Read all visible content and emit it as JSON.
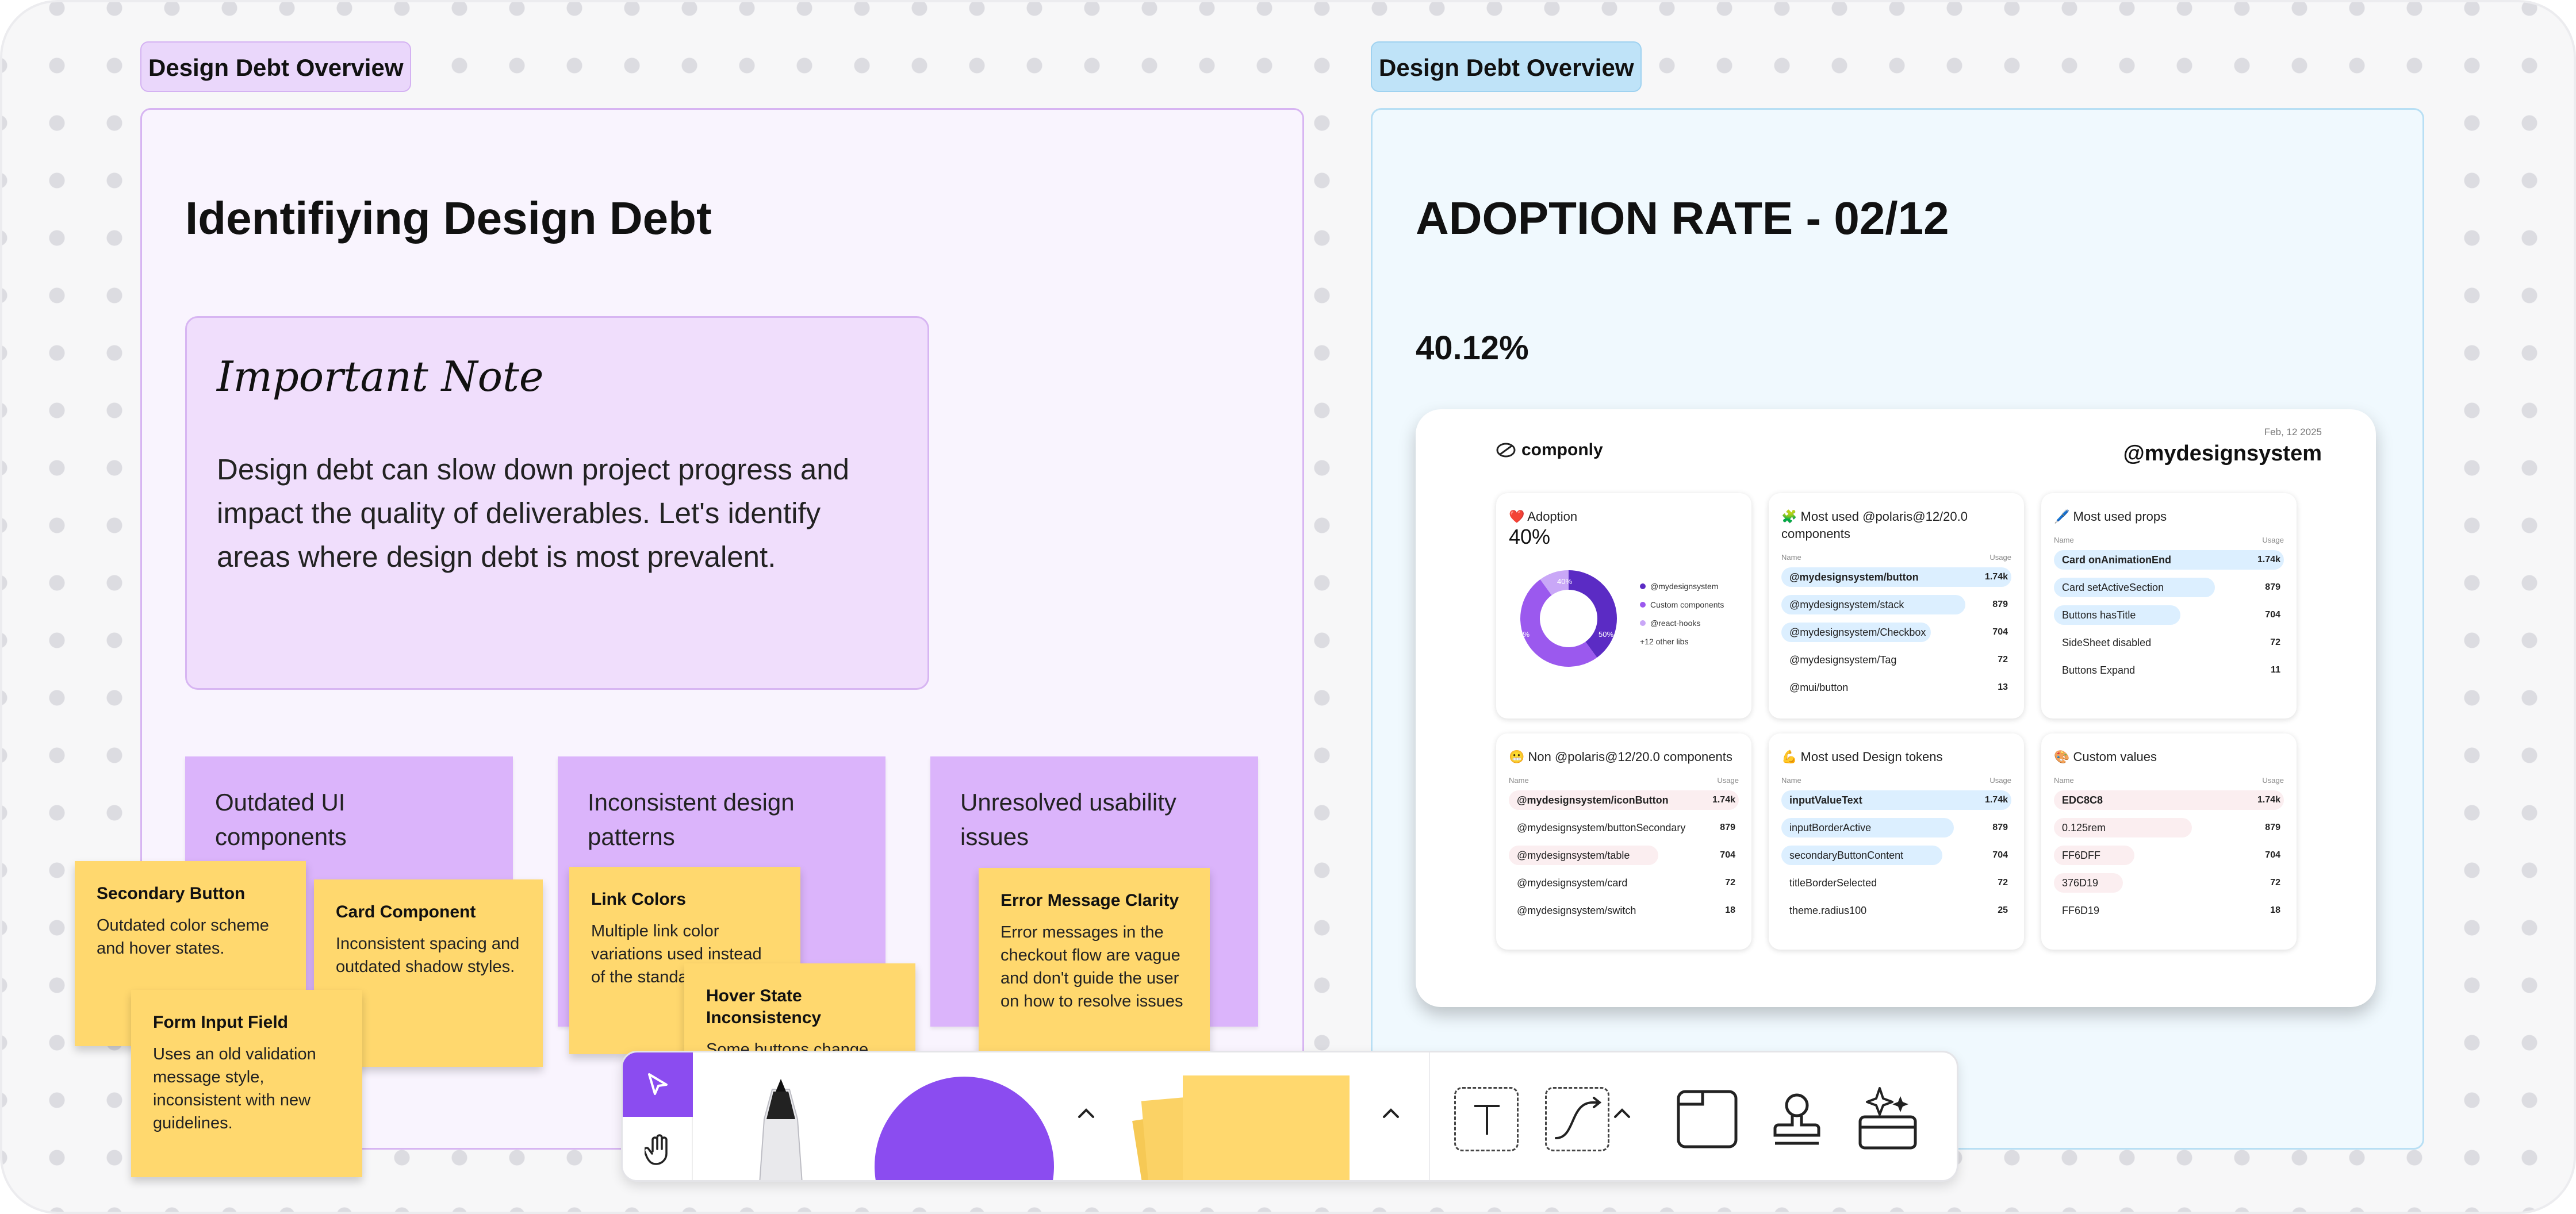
{
  "frames": {
    "left_tag": "Design Debt Overview",
    "right_tag": "Design Debt Overview"
  },
  "left": {
    "title": "Identifiying Design Debt",
    "note": {
      "heading": "Important Note",
      "body": "Design debt can slow down project progress and impact the quality of deliverables. Let's identify areas where design debt is most prevalent."
    },
    "categories": [
      {
        "label": "Outdated UI components"
      },
      {
        "label": "Inconsistent design patterns"
      },
      {
        "label": "Unresolved usability issues"
      }
    ],
    "stickies": [
      {
        "title": "Secondary Button",
        "body": "Outdated color scheme and hover states."
      },
      {
        "title": "Card Component",
        "body": "Inconsistent spacing and outdated shadow styles."
      },
      {
        "title": "Form Input Field",
        "body": "Uses an old validation message style, inconsistent with new guidelines."
      },
      {
        "title": "Link Colors",
        "body": "Multiple link color variations used instead of the standard one."
      },
      {
        "title": "Hover State Inconsistency",
        "body": "Some buttons change color on hover, others only"
      },
      {
        "title": "Error Message Clarity",
        "body": "Error messages in the checkout flow are vague and don't guide the user on how to resolve issues"
      }
    ]
  },
  "right": {
    "title": "ADOPTION RATE - 02/12",
    "rate": "40.12%",
    "dashboard": {
      "brand": "componly",
      "date": "Feb, 12 2025",
      "system": "@mydesignsystem",
      "adoption": {
        "title": "❤️ Adoption",
        "value": "40%",
        "donut_labels": [
          "40%",
          "10%",
          "50%"
        ],
        "slices": [
          {
            "value": 40,
            "color": "#5b2bc4"
          },
          {
            "value": 50,
            "color": "#9b59ee"
          },
          {
            "value": 10,
            "color": "#c9a7f7"
          }
        ],
        "legend": [
          "@mydesignsystem",
          "Custom components",
          "@react-hooks",
          "+12 other libs"
        ]
      },
      "most_used_components": {
        "title": "🧩 Most used @polaris@12/20.0 components",
        "col_name": "Name",
        "col_usage": "Usage",
        "rows": [
          {
            "name": "@mydesignsystem/button",
            "usage": "1.74k",
            "fill": 1.0
          },
          {
            "name": "@mydesignsystem/stack",
            "usage": "879",
            "fill": 0.8
          },
          {
            "name": "@mydesignsystem/Checkbox",
            "usage": "704",
            "fill": 0.65
          },
          {
            "name": "@mydesignsystem/Tag",
            "usage": "72",
            "fill": 0.0
          },
          {
            "name": "@mui/button",
            "usage": "13",
            "fill": 0.0
          }
        ]
      },
      "most_used_props": {
        "title": "🖊️ Most used props",
        "col_name": "Name",
        "col_usage": "Usage",
        "rows": [
          {
            "name": "Card  onAnimationEnd",
            "usage": "1.74k",
            "fill": 1.0
          },
          {
            "name": "Card  setActiveSection",
            "usage": "879",
            "fill": 0.7
          },
          {
            "name": "Buttons  hasTitle",
            "usage": "704",
            "fill": 0.55
          },
          {
            "name": "SideSheet  disabled",
            "usage": "72",
            "fill": 0.0
          },
          {
            "name": "Buttons  Expand",
            "usage": "11",
            "fill": 0.0
          }
        ]
      },
      "non_polaris": {
        "title": "😬 Non @polaris@12/20.0 components",
        "col_name": "Name",
        "col_usage": "Usage",
        "rows": [
          {
            "name": "@mydesignsystem/iconButton",
            "usage": "1.74k",
            "fill": 1.0
          },
          {
            "name": "@mydesignsystem/buttonSecondary",
            "usage": "879",
            "fill": 0.0
          },
          {
            "name": "@mydesignsystem/table",
            "usage": "704",
            "fill": 0.65
          },
          {
            "name": "@mydesignsystem/card",
            "usage": "72",
            "fill": 0.0
          },
          {
            "name": "@mydesignsystem/switch",
            "usage": "18",
            "fill": 0.0
          }
        ]
      },
      "design_tokens": {
        "title": "💪 Most used Design tokens",
        "col_name": "Name",
        "col_usage": "Usage",
        "rows": [
          {
            "name": "inputValueText",
            "usage": "1.74k",
            "fill": 1.0
          },
          {
            "name": "inputBorderActive",
            "usage": "879",
            "fill": 0.75
          },
          {
            "name": "secondaryButtonContent",
            "usage": "704",
            "fill": 0.7
          },
          {
            "name": "titleBorderSelected",
            "usage": "72",
            "fill": 0.0
          },
          {
            "name": "theme.radius100",
            "usage": "25",
            "fill": 0.0
          }
        ]
      },
      "custom_values": {
        "title": "🎨 Custom values",
        "col_name": "Name",
        "col_usage": "Usage",
        "rows": [
          {
            "name": "EDC8C8",
            "usage": "1.74k",
            "fill": 1.0
          },
          {
            "name": "0.125rem",
            "usage": "879",
            "fill": 0.6
          },
          {
            "name": "FF6DFF",
            "usage": "704",
            "fill": 0.35
          },
          {
            "name": "376D19",
            "usage": "72",
            "fill": 0.3
          },
          {
            "name": "FF6D19",
            "usage": "18",
            "fill": 0.0
          }
        ]
      }
    }
  },
  "colors": {
    "left_frame_bg": "#f9f4fe",
    "left_frame_border": "#d7b5f2",
    "left_tag_bg": "#ead7fb",
    "right_frame_bg": "#f0f9fe",
    "right_frame_border": "#b8dff4",
    "right_tag_bg": "#bfe3f8",
    "blue_bar": "#dcefff",
    "pink_bar": "#fbeef0",
    "accent": "#8b4cf0"
  },
  "toolbar": {
    "tools": [
      "select-tool",
      "hand-tool",
      "pen-tool",
      "shape-tool",
      "sticky-tool",
      "text-tool",
      "connector-tool",
      "section-tool",
      "stamp-tool",
      "ai-tool"
    ]
  }
}
